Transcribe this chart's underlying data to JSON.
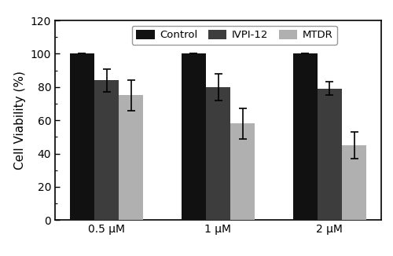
{
  "categories": [
    "0.5 μM",
    "1 μM",
    "2 μM"
  ],
  "series": {
    "Control": [
      100,
      100,
      100
    ],
    "IVPI-12": [
      84,
      80,
      79
    ],
    "MTDR": [
      75,
      58,
      45
    ]
  },
  "errors": {
    "Control": [
      0,
      0,
      0
    ],
    "IVPI-12": [
      7,
      8,
      4
    ],
    "MTDR": [
      9,
      9,
      8
    ]
  },
  "bar_colors": {
    "Control": "#111111",
    "IVPI-12": "#3d3d3d",
    "MTDR": "#b0b0b0"
  },
  "legend_labels": [
    "Control",
    "IVPI-12",
    "MTDR"
  ],
  "ylabel": "Cell Viability (%)",
  "ylim": [
    0,
    120
  ],
  "yticks": [
    0,
    20,
    40,
    60,
    80,
    100,
    120
  ],
  "bar_width": 0.22,
  "figsize": [
    5.0,
    3.26
  ],
  "dpi": 100,
  "background_color": "#ffffff",
  "legend_fontsize": 9.5,
  "axis_fontsize": 11,
  "tick_fontsize": 10
}
